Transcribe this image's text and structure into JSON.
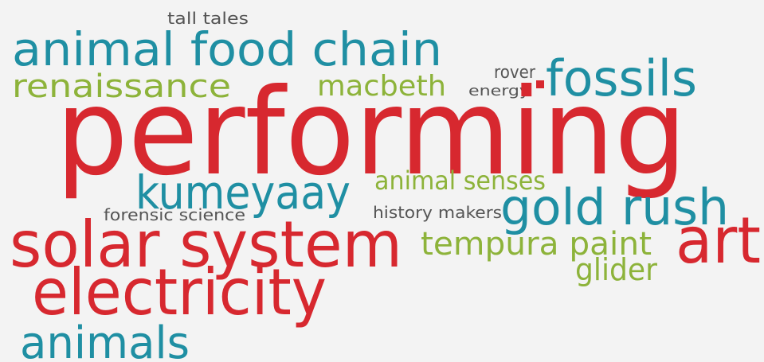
{
  "words": [
    "tall tales",
    "animal food chain",
    "renaissance",
    "macbeth",
    "rover",
    "energy",
    "fossils",
    "performing",
    "kumeyaay",
    "animal senses",
    "forensic science",
    "history makers",
    "gold rush",
    "solar system",
    "tempura paint",
    "art",
    "glider",
    "electricity",
    "animals"
  ]
}
